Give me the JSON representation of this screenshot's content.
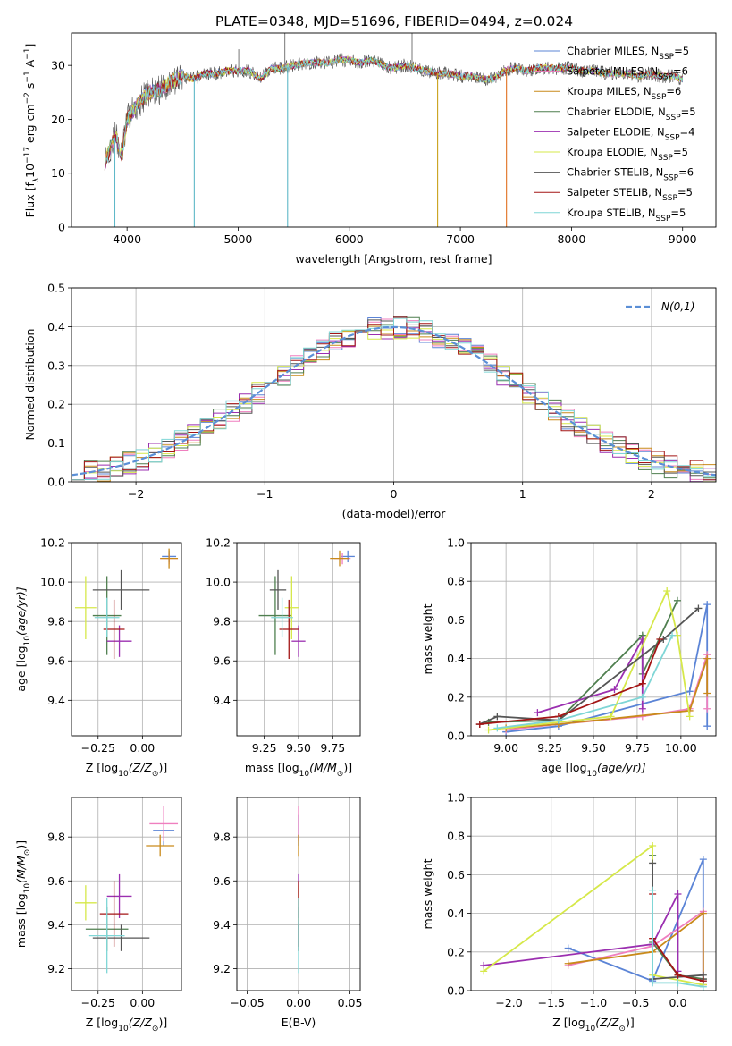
{
  "figure": {
    "title": "PLATE=0348, MJD=51696, FIBERID=0494, z=0.024"
  },
  "models": [
    {
      "name": "Chabrier MILES",
      "nssp": "5",
      "color": "#5b84d6"
    },
    {
      "name": "Salpeter MILES",
      "nssp": "6",
      "color": "#ef7fbf"
    },
    {
      "name": "Kroupa MILES",
      "nssp": "6",
      "color": "#c98a1a"
    },
    {
      "name": "Chabrier ELODIE",
      "nssp": "5",
      "color": "#4f7f4f"
    },
    {
      "name": "Salpeter ELODIE",
      "nssp": "4",
      "color": "#9b2fb0"
    },
    {
      "name": "Kroupa ELODIE",
      "nssp": "5",
      "color": "#d6e84a"
    },
    {
      "name": "Chabrier STELIB",
      "nssp": "6",
      "color": "#555555"
    },
    {
      "name": "Salpeter STELIB",
      "nssp": "5",
      "color": "#a31515"
    },
    {
      "name": "Kroupa STELIB",
      "nssp": "5",
      "color": "#7fd6d6"
    }
  ],
  "chart_data": [
    {
      "id": "spectrum",
      "type": "line",
      "xlabel": "wavelength [Angstrom, rest frame]",
      "ylabel": "Flux [f",
      "ylabel_sub": "λ",
      "ylabel_rest": "10",
      "ylabel_exp1": "−17",
      "ylabel_mid": " erg cm",
      "ylabel_exp2": "−2",
      "ylabel_mid2": " s",
      "ylabel_exp3": "−1",
      "ylabel_mid3": " A",
      "ylabel_exp4": "−1",
      "ylabel_end": "]",
      "xlim": [
        3500,
        9300
      ],
      "ylim": [
        0,
        36
      ],
      "xticks": [
        "4000",
        "5000",
        "6000",
        "7000",
        "8000",
        "9000"
      ],
      "yticks": [
        "0",
        "10",
        "20",
        "30"
      ],
      "legend_position": "upper-right",
      "legend_sub": "SSP",
      "legend_prefix": "N",
      "legend_eq": "=",
      "continuum": {
        "x": [
          3800,
          3850,
          3900,
          3950,
          4000,
          4100,
          4200,
          4300,
          4400,
          4500,
          4600,
          4700,
          4800,
          4900,
          5000,
          5100,
          5200,
          5300,
          5400,
          5500,
          5600,
          5700,
          5800,
          5900,
          6000,
          6100,
          6200,
          6300,
          6400,
          6500,
          6600,
          6700,
          6800,
          6900,
          7000,
          7100,
          7200,
          7300,
          7400,
          7500,
          7600,
          7700,
          7800,
          7900,
          8000,
          8100,
          8200,
          8300,
          8400,
          8500,
          8600,
          8700,
          8800,
          8900,
          9000
        ],
        "y": [
          12,
          15,
          17,
          13,
          20,
          23,
          25,
          25.5,
          27,
          28,
          27.5,
          28.5,
          28.5,
          29,
          29,
          29,
          27.5,
          29.5,
          29.5,
          30,
          30.5,
          30.5,
          30.5,
          31,
          31,
          30.5,
          31,
          30,
          29.5,
          30,
          29.5,
          29,
          28.5,
          28.5,
          28,
          28,
          27.5,
          27.5,
          29,
          29.5,
          29,
          29.5,
          29.5,
          29.5,
          29.5,
          29,
          29,
          28.5,
          28.5,
          28.5,
          28,
          28.5,
          28,
          28,
          27.5
        ]
      },
      "dips": [
        {
          "x": 3890,
          "y": 0
        },
        {
          "x": 4605,
          "y": 0
        },
        {
          "x": 5445,
          "y": 0
        },
        {
          "x": 6795,
          "y": 0
        },
        {
          "x": 7415,
          "y": 0
        }
      ],
      "spikes": [
        {
          "x": 5420,
          "y": 36
        },
        {
          "x": 6565,
          "y": 36
        },
        {
          "x": 5005,
          "y": 33
        }
      ]
    },
    {
      "id": "residuals",
      "type": "histogram",
      "xlabel": "(data-model)/error",
      "ylabel": "Normed distribution",
      "xlim": [
        -2.5,
        2.5
      ],
      "ylim": [
        0,
        0.5
      ],
      "xticks": [
        "−2",
        "−1",
        "0",
        "1",
        "2"
      ],
      "yticks": [
        "0.0",
        "0.1",
        "0.2",
        "0.3",
        "0.4",
        "0.5"
      ],
      "bin_width": 0.1,
      "legend_label": "N(0,1)",
      "legend_position": "upper-right"
    },
    {
      "id": "age-vs-Z",
      "type": "scatter",
      "xlabel": "Z [log",
      "xlabel_sub": "10",
      "xlabel_rest": "(Z/Z",
      "xlabel_sub2": "⊙",
      "xlabel_end": ")]",
      "ylabel": "age  [log",
      "ylabel_sub": "10",
      "ylabel_rest": "(age/yr)]",
      "xlim": [
        -0.4,
        0.22
      ],
      "ylim": [
        9.22,
        10.2
      ],
      "xticks": [
        "−0.25",
        "0.00"
      ],
      "yticks": [
        "9.4",
        "9.6",
        "9.8",
        "10.0",
        "10.2"
      ],
      "points": [
        {
          "x": 0.15,
          "y": 10.13,
          "xerr": 0.04,
          "yerr": 0.03
        },
        {
          "x": 0.15,
          "y": 10.12,
          "xerr": 0.05,
          "yerr": 0.03
        },
        {
          "x": 0.15,
          "y": 10.12,
          "xerr": 0.05,
          "yerr": 0.05
        },
        {
          "x": -0.2,
          "y": 9.83,
          "xerr": 0.08,
          "yerr": 0.2
        },
        {
          "x": -0.13,
          "y": 9.7,
          "xerr": 0.07,
          "yerr": 0.08
        },
        {
          "x": -0.32,
          "y": 9.87,
          "xerr": 0.06,
          "yerr": 0.16
        },
        {
          "x": -0.12,
          "y": 9.96,
          "xerr": 0.16,
          "yerr": 0.1
        },
        {
          "x": -0.16,
          "y": 9.76,
          "xerr": 0.06,
          "yerr": 0.15
        },
        {
          "x": -0.2,
          "y": 9.82,
          "xerr": 0.07,
          "yerr": 0.1
        }
      ]
    },
    {
      "id": "age-vs-mass",
      "type": "scatter",
      "xlabel": "mass [log",
      "xlabel_sub": "10",
      "xlabel_rest": "(M/M",
      "xlabel_sub2": "⊙",
      "xlabel_end": ")]",
      "xlim": [
        9.05,
        9.95
      ],
      "ylim": [
        9.22,
        10.2
      ],
      "xticks": [
        "9.25",
        "9.50",
        "9.75"
      ],
      "yticks": [
        "9.4",
        "9.6",
        "9.8",
        "10.0",
        "10.2"
      ],
      "points": [
        {
          "x": 9.86,
          "y": 10.13,
          "xerr": 0.05,
          "yerr": 0.03
        },
        {
          "x": 9.82,
          "y": 10.12,
          "xerr": 0.06,
          "yerr": 0.03
        },
        {
          "x": 9.8,
          "y": 10.12,
          "xerr": 0.07,
          "yerr": 0.04
        },
        {
          "x": 9.33,
          "y": 9.83,
          "xerr": 0.12,
          "yerr": 0.2
        },
        {
          "x": 9.5,
          "y": 9.7,
          "xerr": 0.05,
          "yerr": 0.08
        },
        {
          "x": 9.45,
          "y": 9.87,
          "xerr": 0.05,
          "yerr": 0.16
        },
        {
          "x": 9.35,
          "y": 9.96,
          "xerr": 0.06,
          "yerr": 0.1
        },
        {
          "x": 9.43,
          "y": 9.76,
          "xerr": 0.07,
          "yerr": 0.15
        },
        {
          "x": 9.38,
          "y": 9.82,
          "xerr": 0.08,
          "yerr": 0.1
        }
      ]
    },
    {
      "id": "mass-weight-vs-age",
      "type": "line",
      "xlabel": "age  [log",
      "xlabel_sub": "10",
      "xlabel_rest": "(age/yr)]",
      "ylabel": "mass weight",
      "xlim": [
        8.8,
        10.2
      ],
      "ylim": [
        0,
        1
      ],
      "xticks": [
        "9.00",
        "9.25",
        "9.50",
        "9.75",
        "10.00"
      ],
      "yticks": [
        "0.0",
        "0.2",
        "0.4",
        "0.6",
        "0.8",
        "1.0"
      ],
      "series": [
        {
          "x": [
            9.0,
            9.3,
            10.05,
            10.15,
            10.15
          ],
          "y": [
            0.02,
            0.05,
            0.23,
            0.68,
            0.05
          ]
        },
        {
          "x": [
            9.0,
            9.3,
            9.78,
            10.05,
            10.15,
            10.15
          ],
          "y": [
            0.03,
            0.06,
            0.1,
            0.14,
            0.42,
            0.14
          ]
        },
        {
          "x": [
            9.0,
            9.3,
            10.05,
            10.15,
            10.15
          ],
          "y": [
            0.04,
            0.06,
            0.13,
            0.4,
            0.22
          ]
        },
        {
          "x": [
            8.9,
            9.3,
            9.78,
            9.78,
            9.98
          ],
          "y": [
            0.07,
            0.08,
            0.52,
            0.32,
            0.7
          ]
        },
        {
          "x": [
            9.18,
            9.62,
            9.78,
            9.78
          ],
          "y": [
            0.12,
            0.24,
            0.5,
            0.14
          ]
        },
        {
          "x": [
            8.9,
            9.6,
            9.92,
            9.98,
            10.05
          ],
          "y": [
            0.03,
            0.1,
            0.75,
            0.52,
            0.1
          ]
        },
        {
          "x": [
            8.85,
            8.95,
            9.3,
            9.9,
            10.1
          ],
          "y": [
            0.06,
            0.1,
            0.08,
            0.5,
            0.66
          ]
        },
        {
          "x": [
            8.85,
            9.3,
            9.78,
            9.88
          ],
          "y": [
            0.06,
            0.1,
            0.27,
            0.5
          ]
        },
        {
          "x": [
            8.95,
            9.3,
            9.78,
            9.95
          ],
          "y": [
            0.04,
            0.08,
            0.2,
            0.52
          ]
        }
      ]
    },
    {
      "id": "mass-vs-Z",
      "type": "scatter",
      "xlabel": "Z [log",
      "xlabel_sub": "10",
      "xlabel_rest": "(Z/Z",
      "xlabel_sub2": "⊙",
      "xlabel_end": ")]",
      "ylabel": "mass [log",
      "ylabel_sub": "10",
      "ylabel_rest": "(M/M",
      "ylabel_sub2": "⊙",
      "ylabel_end": ")]",
      "xlim": [
        -0.4,
        0.22
      ],
      "ylim": [
        9.1,
        9.98
      ],
      "xticks": [
        "−0.25",
        "0.00"
      ],
      "yticks": [
        "9.2",
        "9.4",
        "9.6",
        "9.8"
      ],
      "points": [
        {
          "x": 0.12,
          "y": 9.83,
          "xerr": 0.06,
          "yerr": 0.07
        },
        {
          "x": 0.12,
          "y": 9.86,
          "xerr": 0.08,
          "yerr": 0.08
        },
        {
          "x": 0.1,
          "y": 9.76,
          "xerr": 0.08,
          "yerr": 0.05
        },
        {
          "x": -0.2,
          "y": 9.38,
          "xerr": 0.12,
          "yerr": 0.1
        },
        {
          "x": -0.13,
          "y": 9.53,
          "xerr": 0.07,
          "yerr": 0.1
        },
        {
          "x": -0.32,
          "y": 9.5,
          "xerr": 0.06,
          "yerr": 0.08
        },
        {
          "x": -0.12,
          "y": 9.34,
          "xerr": 0.16,
          "yerr": 0.06
        },
        {
          "x": -0.16,
          "y": 9.45,
          "xerr": 0.08,
          "yerr": 0.15
        },
        {
          "x": -0.2,
          "y": 9.35,
          "xerr": 0.1,
          "yerr": 0.17
        }
      ]
    },
    {
      "id": "mass-vs-ebv",
      "type": "scatter",
      "xlabel": "E(B-V)",
      "xlim": [
        -0.06,
        0.06
      ],
      "ylim": [
        9.1,
        9.98
      ],
      "xticks": [
        "−0.05",
        "0.00",
        "0.05"
      ],
      "yticks": [
        "9.2",
        "9.4",
        "9.6",
        "9.8"
      ],
      "points": [
        {
          "x": 0,
          "y": 9.83,
          "yerr": 0.07
        },
        {
          "x": 0,
          "y": 9.86,
          "yerr": 0.08
        },
        {
          "x": 0,
          "y": 9.76,
          "yerr": 0.05
        },
        {
          "x": 0,
          "y": 9.38,
          "yerr": 0.1
        },
        {
          "x": 0,
          "y": 9.53,
          "yerr": 0.1
        },
        {
          "x": 0,
          "y": 9.5,
          "yerr": 0.08
        },
        {
          "x": 0,
          "y": 9.34,
          "yerr": 0.06
        },
        {
          "x": 0,
          "y": 9.45,
          "yerr": 0.15
        },
        {
          "x": 0,
          "y": 9.35,
          "yerr": 0.17
        }
      ]
    },
    {
      "id": "mass-weight-vs-Z",
      "type": "line",
      "xlabel": "Z [log",
      "xlabel_sub": "10",
      "xlabel_rest": "(Z/Z",
      "xlabel_sub2": "⊙",
      "xlabel_end": ")]",
      "ylabel": "mass weight",
      "xlim": [
        -2.45,
        0.45
      ],
      "ylim": [
        0,
        1
      ],
      "xticks": [
        "−2.0",
        "−1.5",
        "−1.0",
        "−0.5",
        "0.0"
      ],
      "yticks": [
        "0.0",
        "0.2",
        "0.4",
        "0.6",
        "0.8",
        "1.0"
      ],
      "series": [
        {
          "x": [
            -1.3,
            -0.3,
            0.3,
            0.3
          ],
          "y": [
            0.22,
            0.05,
            0.68,
            0.05
          ]
        },
        {
          "x": [
            -1.3,
            -0.3,
            0.3,
            0.3
          ],
          "y": [
            0.13,
            0.23,
            0.41,
            0.03
          ]
        },
        {
          "x": [
            -1.3,
            -0.3,
            0.3,
            0.3
          ],
          "y": [
            0.14,
            0.2,
            0.4,
            0.03
          ]
        },
        {
          "x": [
            -0.3,
            -0.3,
            0,
            0.3
          ],
          "y": [
            0.7,
            0.25,
            0.08,
            0.06
          ]
        },
        {
          "x": [
            -2.3,
            -0.3,
            0,
            0
          ],
          "y": [
            0.13,
            0.24,
            0.5,
            0.1
          ]
        },
        {
          "x": [
            -2.3,
            -0.3,
            -0.3,
            0.3
          ],
          "y": [
            0.1,
            0.75,
            0.08,
            0.03
          ]
        },
        {
          "x": [
            -0.3,
            -0.3,
            0.3,
            0.3
          ],
          "y": [
            0.66,
            0.06,
            0.08,
            0.06
          ]
        },
        {
          "x": [
            -0.3,
            -0.3,
            0,
            0.3
          ],
          "y": [
            0.5,
            0.27,
            0.08,
            0.05
          ]
        },
        {
          "x": [
            -0.3,
            -0.3,
            0,
            0.3
          ],
          "y": [
            0.52,
            0.04,
            0.04,
            0.02
          ]
        }
      ]
    }
  ]
}
